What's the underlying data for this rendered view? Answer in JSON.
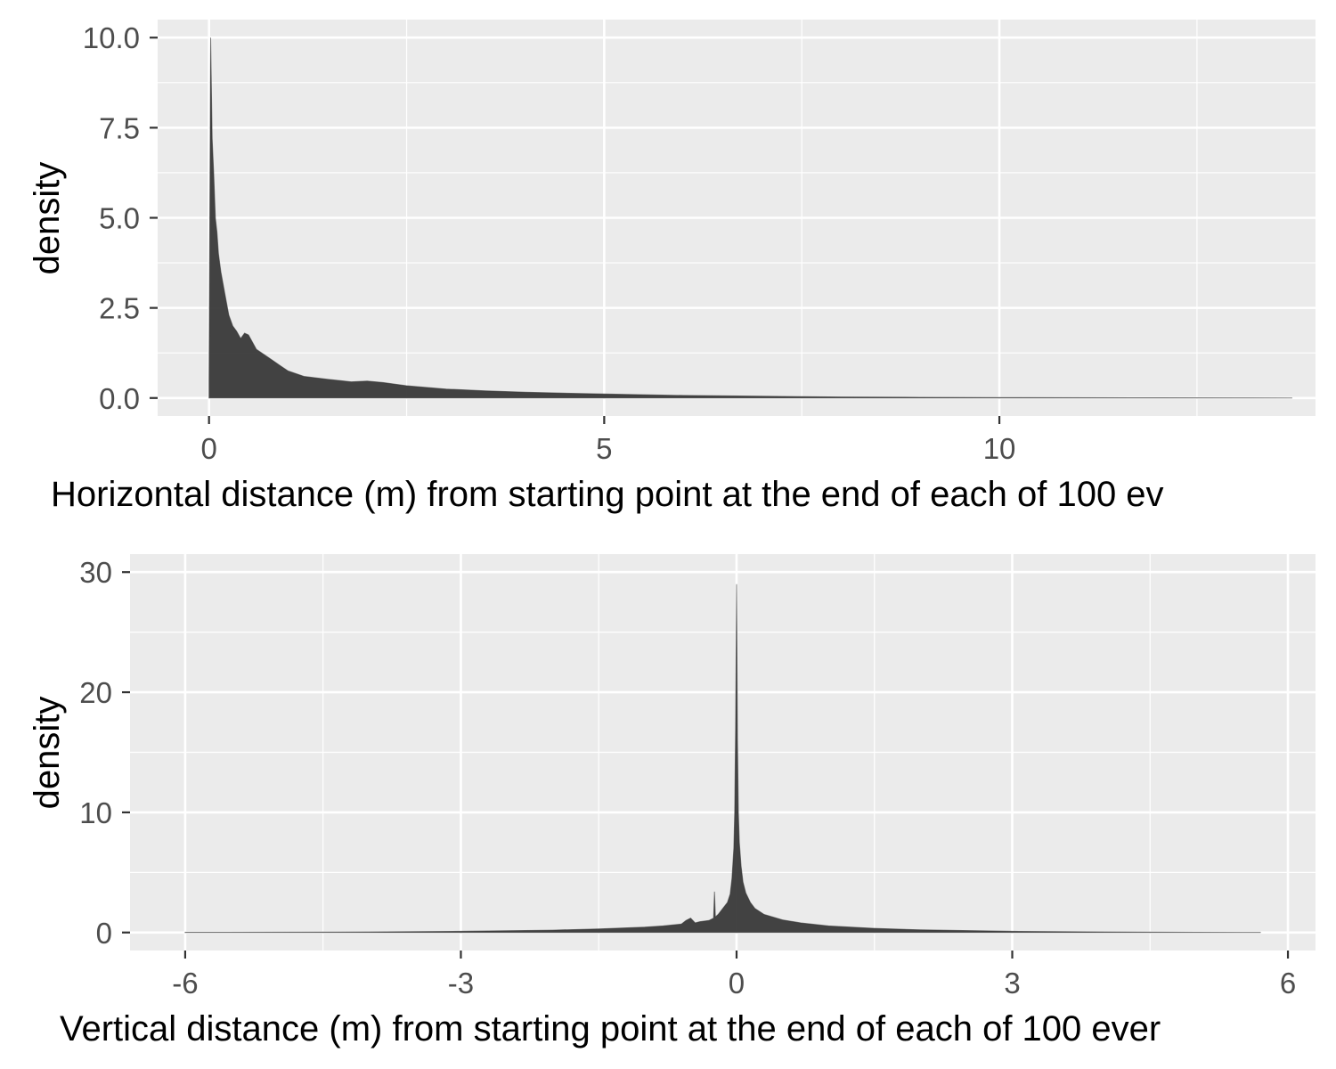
{
  "colors": {
    "panel_bg": "#ebebeb",
    "grid": "#ffffff",
    "fill": "#333333",
    "tick_text": "#4d4d4d",
    "axis_title": "#000000"
  },
  "chart_data": [
    {
      "type": "area",
      "title": "",
      "xlabel": "Horizontal distance (m) from starting point at the end of each of 100 ev",
      "ylabel": "density",
      "xlim": [
        -0.65,
        14.0
      ],
      "ylim": [
        -0.5,
        10.5
      ],
      "x_ticks": [
        0,
        5,
        10
      ],
      "x_tick_labels": [
        "0",
        "5",
        "10"
      ],
      "y_ticks": [
        0,
        2.5,
        5,
        7.5,
        10
      ],
      "y_tick_labels": [
        "0.0",
        "2.5",
        "5.0",
        "7.5",
        "10.0"
      ],
      "grid": true,
      "legend": "none",
      "series": [
        {
          "x": [
            0,
            0.02,
            0.04,
            0.06,
            0.08,
            0.1,
            0.12,
            0.15,
            0.2,
            0.25,
            0.3,
            0.35,
            0.4,
            0.45,
            0.5,
            0.6,
            0.7,
            0.8,
            0.9,
            1.0,
            1.2,
            1.5,
            1.8,
            2.0,
            2.2,
            2.5,
            3.0,
            3.5,
            4.0,
            5.0,
            6.0,
            7.0,
            8.0,
            9.0,
            10.0,
            11.0,
            12.0,
            13.0,
            13.7
          ],
          "y": [
            0.5,
            10.0,
            7.2,
            6.2,
            5.0,
            4.6,
            4.0,
            3.5,
            2.9,
            2.3,
            2.0,
            1.85,
            1.65,
            1.8,
            1.75,
            1.35,
            1.2,
            1.05,
            0.9,
            0.75,
            0.6,
            0.52,
            0.45,
            0.47,
            0.43,
            0.34,
            0.25,
            0.2,
            0.16,
            0.11,
            0.07,
            0.05,
            0.03,
            0.02,
            0.015,
            0.01,
            0.006,
            0.004,
            0.003
          ]
        }
      ]
    },
    {
      "type": "area",
      "title": "",
      "xlabel": "Vertical distance (m) from starting point at the end of each of 100 ever",
      "ylabel": "density",
      "xlim": [
        -6.6,
        6.3
      ],
      "ylim": [
        -1.5,
        31.5
      ],
      "x_ticks": [
        -6,
        -3,
        0,
        3,
        6
      ],
      "x_tick_labels": [
        "-6",
        "-3",
        "0",
        "3",
        "6"
      ],
      "y_ticks": [
        0,
        10,
        20,
        30
      ],
      "y_tick_labels": [
        "0",
        "10",
        "20",
        "30"
      ],
      "grid": true,
      "legend": "none",
      "series": [
        {
          "x": [
            -6.0,
            -5.0,
            -4.0,
            -3.0,
            -2.5,
            -2.0,
            -1.5,
            -1.0,
            -0.8,
            -0.6,
            -0.55,
            -0.5,
            -0.45,
            -0.4,
            -0.3,
            -0.25,
            -0.24,
            -0.23,
            -0.2,
            -0.15,
            -0.1,
            -0.07,
            -0.05,
            -0.03,
            -0.02,
            -0.01,
            0.0,
            0.01,
            0.02,
            0.03,
            0.05,
            0.07,
            0.1,
            0.15,
            0.2,
            0.3,
            0.5,
            0.7,
            1.0,
            1.5,
            2.0,
            3.0,
            4.0,
            5.0,
            5.7
          ],
          "y": [
            0.02,
            0.03,
            0.05,
            0.1,
            0.15,
            0.2,
            0.3,
            0.45,
            0.55,
            0.7,
            1.0,
            1.2,
            0.8,
            0.9,
            1.0,
            1.2,
            3.4,
            1.3,
            1.5,
            2.0,
            2.5,
            3.2,
            4.5,
            7.0,
            10.0,
            17.0,
            29.0,
            16.0,
            10.0,
            7.5,
            5.5,
            4.2,
            3.3,
            2.5,
            2.0,
            1.5,
            1.05,
            0.8,
            0.55,
            0.35,
            0.22,
            0.1,
            0.05,
            0.02,
            0.01
          ]
        }
      ]
    }
  ]
}
